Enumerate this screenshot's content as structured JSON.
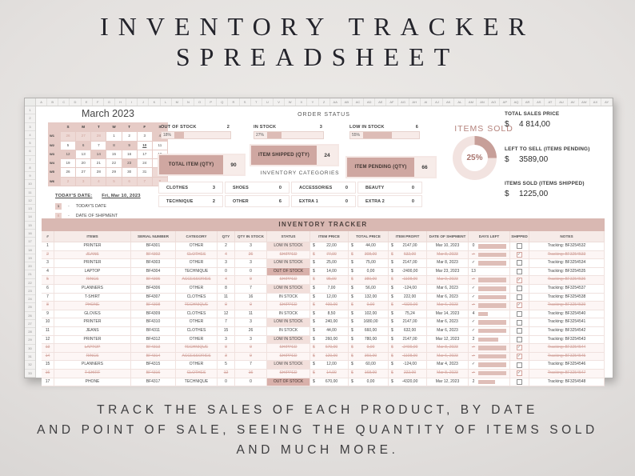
{
  "page": {
    "title_line1": "INVENTORY TRACKER",
    "title_line2": "SPREADSHEET",
    "footer_line1": "TRACK THE SALES OF EACH PRODUCT, BY DATE",
    "footer_line2": "AND POINT OF SALE, SEEING THE QUANTITY OF ITEMS SOLD",
    "footer_line3": "AND MUCH MORE."
  },
  "colors": {
    "rose_dark": "#cfa7a1",
    "rose_mid": "#ddbcb6",
    "rose_band": "#d9b8b2",
    "rose_light": "#f2e3e0",
    "calendar_bg": "#e6cbc6",
    "strike_text": "#d5a8a1",
    "donut_fill": "#c79f99",
    "donut_track": "#f2e3e0"
  },
  "spreadsheet": {
    "column_letters": [
      "A",
      "B",
      "C",
      "D",
      "E",
      "F",
      "G",
      "H",
      "I",
      "J",
      "K",
      "L",
      "M",
      "N",
      "O",
      "P",
      "Q",
      "R",
      "S",
      "T",
      "U",
      "V",
      "W",
      "X",
      "Y",
      "Z",
      "AA",
      "AB",
      "AC",
      "AD",
      "AE",
      "AF",
      "AG",
      "AH",
      "AI",
      "AJ",
      "AK",
      "AL",
      "AM",
      "AN",
      "AO",
      "AP",
      "AQ",
      "AR",
      "AS",
      "AT",
      "AU",
      "AV",
      "AW",
      "AX",
      "AY"
    ],
    "row_numbers": [
      "1",
      "2",
      "3",
      "4",
      "5",
      "6",
      "7",
      "8",
      "9",
      "10",
      "11",
      "12",
      "13",
      "14",
      "15",
      "16",
      "17",
      "18",
      "19",
      "20",
      "21",
      "22",
      "23",
      "24",
      "25",
      "26",
      "27",
      "28",
      "29",
      "30",
      "31",
      "32",
      "33"
    ],
    "calendar": {
      "title": "March 2023",
      "day_headers": [
        "S",
        "M",
        "T",
        "W",
        "T",
        "F",
        "S"
      ],
      "weeks": [
        {
          "label": "W1",
          "days": [
            {
              "d": "26",
              "t": "prev"
            },
            {
              "d": "27",
              "t": "prev"
            },
            {
              "d": "28",
              "t": "prev"
            },
            {
              "d": "1",
              "t": "day"
            },
            {
              "d": "2",
              "t": "day"
            },
            {
              "d": "3",
              "t": "day"
            },
            {
              "d": "4",
              "t": "ship"
            }
          ]
        },
        {
          "label": "W2",
          "days": [
            {
              "d": "5",
              "t": "day"
            },
            {
              "d": "6",
              "t": "ship"
            },
            {
              "d": "7",
              "t": "day"
            },
            {
              "d": "8",
              "t": "ship"
            },
            {
              "d": "9",
              "t": "ship"
            },
            {
              "d": "10",
              "t": "today"
            },
            {
              "d": "11",
              "t": "day"
            }
          ]
        },
        {
          "label": "W3",
          "days": [
            {
              "d": "12",
              "t": "ship"
            },
            {
              "d": "13",
              "t": "day"
            },
            {
              "d": "14",
              "t": "ship"
            },
            {
              "d": "15",
              "t": "day"
            },
            {
              "d": "16",
              "t": "day"
            },
            {
              "d": "17",
              "t": "day"
            },
            {
              "d": "18",
              "t": "day"
            }
          ]
        },
        {
          "label": "W4",
          "days": [
            {
              "d": "19",
              "t": "day"
            },
            {
              "d": "20",
              "t": "day"
            },
            {
              "d": "21",
              "t": "day"
            },
            {
              "d": "22",
              "t": "day"
            },
            {
              "d": "23",
              "t": "ship"
            },
            {
              "d": "24",
              "t": "day"
            },
            {
              "d": "25",
              "t": "day"
            }
          ]
        },
        {
          "label": "W5",
          "days": [
            {
              "d": "26",
              "t": "day"
            },
            {
              "d": "27",
              "t": "day"
            },
            {
              "d": "28",
              "t": "day"
            },
            {
              "d": "29",
              "t": "day"
            },
            {
              "d": "30",
              "t": "day"
            },
            {
              "d": "31",
              "t": "day"
            },
            {
              "d": "1",
              "t": "next"
            }
          ]
        },
        {
          "label": "W6",
          "days": [
            {
              "d": "2",
              "t": "next"
            },
            {
              "d": "3",
              "t": "next"
            },
            {
              "d": "4",
              "t": "next"
            },
            {
              "d": "5",
              "t": "next"
            },
            {
              "d": "6",
              "t": "next"
            },
            {
              "d": "7",
              "t": "next"
            },
            {
              "d": "8",
              "t": "next"
            }
          ]
        }
      ]
    },
    "legend": {
      "today_label": "TODAY'S DATE:",
      "today_value": "Fri, Mar 10, 2023",
      "items": [
        {
          "key": "1",
          "sep": "-",
          "label": "TODAY'S DATE"
        },
        {
          "key": "8",
          "sep": "-",
          "label": "DATE OF SHIPMENT"
        }
      ]
    },
    "order_status": {
      "title": "ORDER STATUS",
      "stats": [
        {
          "label": "OUT OF STOCK",
          "count": "2",
          "pct": "18%",
          "fill": 0.18
        },
        {
          "label": "IN STOCK",
          "count": "3",
          "pct": "27%",
          "fill": 0.27
        },
        {
          "label": "LOW IN STOCK",
          "count": "6",
          "pct": "55%",
          "fill": 0.55
        }
      ],
      "totals": [
        {
          "label": "TOTAL ITEM (QTY)",
          "value": "90"
        },
        {
          "label": "ITEM SHIPPED (QTY)",
          "value": "24"
        },
        {
          "label": "ITEM PENDING (QTY)",
          "value": "66"
        }
      ]
    },
    "categories": {
      "title": "INVENTORY CATEGORIES",
      "items": [
        {
          "label": "CLOTHES",
          "value": "3"
        },
        {
          "label": "SHOES",
          "value": "0"
        },
        {
          "label": "ACCESSORIES",
          "value": "0"
        },
        {
          "label": "BEAUTY",
          "value": "0"
        },
        {
          "label": "TECHNIQUE",
          "value": "2"
        },
        {
          "label": "OTHER",
          "value": "6"
        },
        {
          "label": "EXTRA 1",
          "value": "0"
        },
        {
          "label": "EXTRA 2",
          "value": "0"
        }
      ]
    },
    "items_sold": {
      "title": "ITEMS SOLD",
      "pct": "25%",
      "fraction": 0.25
    },
    "sales_summary": [
      {
        "label": "TOTAL SALES PRICE",
        "currency": "$",
        "amount": "4 814,00"
      },
      {
        "label": "LEFT TO SELL (ITEMS PENDING)",
        "currency": "$",
        "amount": "3589,00"
      },
      {
        "label": "ITEMS SOLD (ITEMS SHIPPED)",
        "currency": "$",
        "amount": "1225,00"
      }
    ],
    "tracker": {
      "title": "INVENTORY TRACKER",
      "currency": "$",
      "headers": [
        "#",
        "ITEMS",
        "SERIAL NUMBER",
        "CATEGORY",
        "QTY",
        "QTY IN STOCK",
        "STATUS",
        "ITEM PRICE",
        "TOTAL PRICE",
        "ITEM PROFIT",
        "DATE OF SHIPMENT",
        "DAYS LEFT",
        "SHIPPED",
        "NOTES"
      ],
      "rows": [
        {
          "num": "1",
          "item": "PRINTER",
          "serial": "BF4301",
          "category": "OTHER",
          "qty": "2",
          "stock": "3",
          "status": "LOW IN STOCK",
          "price": "22,00",
          "total": "44,00",
          "profit": "2147,00",
          "date": "Mar 10, 2023",
          "days": "0",
          "bar": 1,
          "shipped": false,
          "struck": false,
          "notes": "Tracking: BF3254532"
        },
        {
          "num": "2",
          "item": "JEANS",
          "serial": "BF4302",
          "category": "CLOTHES",
          "qty": "4",
          "stock": "26",
          "status": "SHIPPED",
          "price": "77,00",
          "total": "308,00",
          "profit": "632,00",
          "date": "Mar 8, 2023",
          "days": "✓",
          "bar": 1,
          "shipped": true,
          "struck": true,
          "notes": "Tracking: BF3254533"
        },
        {
          "num": "3",
          "item": "PRINTER",
          "serial": "BF4303",
          "category": "OTHER",
          "qty": "3",
          "stock": "3",
          "status": "LOW IN STOCK",
          "price": "25,00",
          "total": "75,00",
          "profit": "2147,00",
          "date": "Mar 8, 2023",
          "days": "✓",
          "bar": 1,
          "shipped": false,
          "struck": false,
          "notes": "Tracking: BF3254534"
        },
        {
          "num": "4",
          "item": "LAPTOP",
          "serial": "BF4304",
          "category": "TECHNIQUE",
          "qty": "0",
          "stock": "0",
          "status": "OUT OF STOCK",
          "price": "14,00",
          "total": "0,00",
          "profit": "-2400,00",
          "date": "Mar 23, 2023",
          "days": "13",
          "bar": 0,
          "shipped": false,
          "struck": false,
          "notes": "Tracking: BF3254535"
        },
        {
          "num": "5",
          "item": "RINGS",
          "serial": "BF4305",
          "category": "ACCESSORIES",
          "qty": "4",
          "stock": "9",
          "status": "SHIPPED",
          "price": "95,00",
          "total": "380,00",
          "profit": "-1108,00",
          "date": "Mar 9, 2023",
          "days": "✓",
          "bar": 1,
          "shipped": true,
          "struck": true,
          "notes": "Tracking: BF3254536"
        },
        {
          "num": "6",
          "item": "PLANNERS",
          "serial": "BF4306",
          "category": "OTHER",
          "qty": "8",
          "stock": "7",
          "status": "LOW IN STOCK",
          "price": "7,00",
          "total": "56,00",
          "profit": "-124,00",
          "date": "Mar 6, 2023",
          "days": "✓",
          "bar": 1,
          "shipped": false,
          "struck": false,
          "notes": "Tracking: BF3254537"
        },
        {
          "num": "7",
          "item": "T-SHIRT",
          "serial": "BF4307",
          "category": "CLOTHES",
          "qty": "11",
          "stock": "16",
          "status": "IN STOCK",
          "price": "12,00",
          "total": "132,00",
          "profit": "222,00",
          "date": "Mar 6, 2023",
          "days": "✓",
          "bar": 1,
          "shipped": false,
          "struck": false,
          "notes": "Tracking: BF3254538"
        },
        {
          "num": "8",
          "item": "PHONE",
          "serial": "BF4308",
          "category": "TECHNIQUE",
          "qty": "0",
          "stock": "0",
          "status": "SHIPPED",
          "price": "400,00",
          "total": "0,00",
          "profit": "-4320,00",
          "date": "Mar 6, 2023",
          "days": "✓",
          "bar": 1,
          "shipped": true,
          "struck": true,
          "notes": "Tracking: BF3254539"
        },
        {
          "num": "9",
          "item": "GLOVES",
          "serial": "BF4309",
          "category": "CLOTHES",
          "qty": "12",
          "stock": "11",
          "status": "IN STOCK",
          "price": "8,50",
          "total": "102,00",
          "profit": "75,24",
          "date": "Mar 14, 2023",
          "days": "4",
          "bar": 0.35,
          "shipped": false,
          "struck": false,
          "notes": "Tracking: BF3254540"
        },
        {
          "num": "10",
          "item": "PRINTER",
          "serial": "BF4310",
          "category": "OTHER",
          "qty": "7",
          "stock": "3",
          "status": "LOW IN STOCK",
          "price": "240,00",
          "total": "1680,00",
          "profit": "2147,00",
          "date": "Mar 6, 2023",
          "days": "✓",
          "bar": 1,
          "shipped": false,
          "struck": false,
          "notes": "Tracking: BF3254541"
        },
        {
          "num": "11",
          "item": "JEANS",
          "serial": "BF4311",
          "category": "CLOTHES",
          "qty": "15",
          "stock": "26",
          "status": "IN STOCK",
          "price": "44,00",
          "total": "660,00",
          "profit": "632,00",
          "date": "Mar 6, 2023",
          "days": "✓",
          "bar": 1,
          "shipped": false,
          "struck": false,
          "notes": "Tracking: BF3254542"
        },
        {
          "num": "12",
          "item": "PRINTER",
          "serial": "BF4312",
          "category": "OTHER",
          "qty": "3",
          "stock": "3",
          "status": "LOW IN STOCK",
          "price": "260,00",
          "total": "780,00",
          "profit": "2147,00",
          "date": "Mar 12, 2023",
          "days": "2",
          "bar": 0.7,
          "shipped": false,
          "struck": false,
          "notes": "Tracking: BF3254543"
        },
        {
          "num": "13",
          "item": "LAPTOP",
          "serial": "BF4313",
          "category": "TECHNIQUE",
          "qty": "0",
          "stock": "0",
          "status": "SHIPPED",
          "price": "670,00",
          "total": "0,00",
          "profit": "-2400,00",
          "date": "Mar 8, 2023",
          "days": "✓",
          "bar": 1,
          "shipped": true,
          "struck": true,
          "notes": "Tracking: BF3254544"
        },
        {
          "num": "14",
          "item": "RINGS",
          "serial": "BF4314",
          "category": "ACCESSORIES",
          "qty": "3",
          "stock": "9",
          "status": "SHIPPED",
          "price": "120,00",
          "total": "360,00",
          "profit": "-1108,00",
          "date": "Mar 6, 2023",
          "days": "✓",
          "bar": 1,
          "shipped": true,
          "struck": true,
          "notes": "Tracking: BF3254545"
        },
        {
          "num": "15",
          "item": "PLANNERS",
          "serial": "BF4315",
          "category": "OTHER",
          "qty": "5",
          "stock": "7",
          "status": "LOW IN STOCK",
          "price": "12,00",
          "total": "60,00",
          "profit": "-124,00",
          "date": "Mar 4, 2023",
          "days": "✓",
          "bar": 1,
          "shipped": false,
          "struck": false,
          "notes": "Tracking: BF3254546"
        },
        {
          "num": "16",
          "item": "T-SHIRT",
          "serial": "BF4316",
          "category": "CLOTHES",
          "qty": "12",
          "stock": "16",
          "status": "SHIPPED",
          "price": "14,00",
          "total": "168,00",
          "profit": "222,00",
          "date": "Mar 8, 2023",
          "days": "✓",
          "bar": 1,
          "shipped": true,
          "struck": true,
          "notes": "Tracking: BF3254547"
        },
        {
          "num": "17",
          "item": "PHONE",
          "serial": "BF4317",
          "category": "TECHNIQUE",
          "qty": "0",
          "stock": "0",
          "status": "OUT OF STOCK",
          "price": "670,00",
          "total": "0,00",
          "profit": "-4320,00",
          "date": "Mar 12, 2023",
          "days": "2",
          "bar": 0.6,
          "shipped": false,
          "struck": false,
          "notes": "Tracking: BF3254548"
        }
      ]
    }
  }
}
